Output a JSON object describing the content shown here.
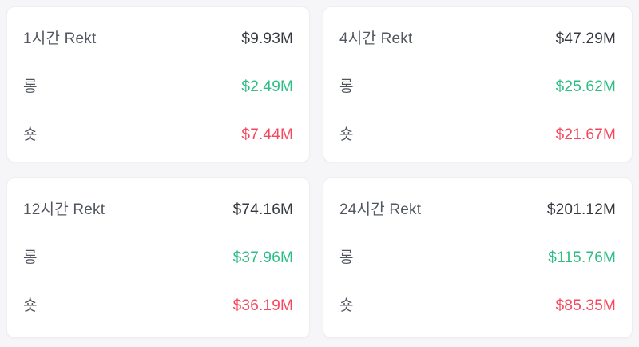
{
  "colors": {
    "page_background": "#f6f6f8",
    "card_background": "#ffffff",
    "card_border": "#eeeef1",
    "label_text": "#51565f",
    "total_text": "#35393f",
    "long_green": "#2ebd85",
    "short_red": "#f5475d"
  },
  "row_labels": {
    "long": "롱",
    "short": "숏"
  },
  "cards": [
    {
      "title": "1시간 Rekt",
      "total": "$9.93M",
      "long": "$2.49M",
      "short": "$7.44M"
    },
    {
      "title": "4시간 Rekt",
      "total": "$47.29M",
      "long": "$25.62M",
      "short": "$21.67M"
    },
    {
      "title": "12시간 Rekt",
      "total": "$74.16M",
      "long": "$37.96M",
      "short": "$36.19M"
    },
    {
      "title": "24시간 Rekt",
      "total": "$201.12M",
      "long": "$115.76M",
      "short": "$85.35M"
    }
  ]
}
